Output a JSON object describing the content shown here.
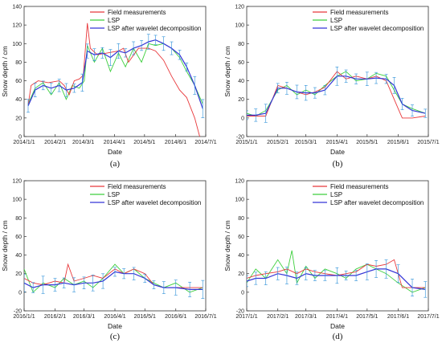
{
  "colors": {
    "field": "#e8383b",
    "lsp": "#3ecf3e",
    "wavelet": "#3535d6",
    "errorbar": "#2a8fd8"
  },
  "chart_data": [
    {
      "type": "line",
      "panel": "(a)",
      "xlabel": "Date",
      "ylabel": "Snow depth / cm",
      "ylim": [
        0,
        140
      ],
      "yticks": [
        0,
        20,
        40,
        60,
        80,
        100,
        120,
        140
      ],
      "xlim": [
        "2014-01-01",
        "2014-07-01"
      ],
      "xtick_labels": [
        "2014/1/1",
        "2014/2/1",
        "2014/3/1",
        "2014/4/1",
        "2014/5/1",
        "2014/6/1",
        "2014/7/1"
      ],
      "legend": "top-right",
      "series": [
        {
          "name": "Field measurements",
          "key": "field",
          "x": [
            "2014-01-05",
            "2014-01-08",
            "2014-01-15",
            "2014-01-25",
            "2014-02-05",
            "2014-02-10",
            "2014-02-15",
            "2014-02-20",
            "2014-02-25",
            "2014-03-01",
            "2014-03-05",
            "2014-03-08",
            "2014-03-15",
            "2014-03-25",
            "2014-04-05",
            "2014-04-10",
            "2014-04-15",
            "2014-04-25",
            "2014-05-05",
            "2014-05-12",
            "2014-05-20",
            "2014-05-28",
            "2014-06-05",
            "2014-06-12",
            "2014-06-20",
            "2014-06-25"
          ],
          "y": [
            34,
            55,
            60,
            58,
            60,
            55,
            45,
            60,
            62,
            66,
            122,
            95,
            88,
            90,
            92,
            95,
            80,
            95,
            95,
            92,
            82,
            65,
            50,
            42,
            20,
            0
          ]
        },
        {
          "name": "LSP",
          "key": "lsp",
          "x": [
            "2014-01-05",
            "2014-01-12",
            "2014-01-20",
            "2014-01-28",
            "2014-02-05",
            "2014-02-12",
            "2014-02-18",
            "2014-02-25",
            "2014-03-02",
            "2014-03-05",
            "2014-03-12",
            "2014-03-20",
            "2014-03-28",
            "2014-04-05",
            "2014-04-12",
            "2014-04-20",
            "2014-04-28",
            "2014-05-05",
            "2014-05-12",
            "2014-05-20",
            "2014-05-28",
            "2014-06-05",
            "2014-06-12",
            "2014-06-20",
            "2014-06-28"
          ],
          "y": [
            35,
            52,
            58,
            45,
            58,
            40,
            55,
            52,
            60,
            98,
            80,
            95,
            70,
            90,
            75,
            95,
            80,
            100,
            98,
            100,
            95,
            85,
            70,
            55,
            35
          ]
        },
        {
          "name": "LSP after wavelet decomposition",
          "key": "wavelet",
          "x": [
            "2014-01-05",
            "2014-01-12",
            "2014-01-20",
            "2014-01-28",
            "2014-02-05",
            "2014-02-12",
            "2014-02-20",
            "2014-02-28",
            "2014-03-05",
            "2014-03-12",
            "2014-03-20",
            "2014-03-28",
            "2014-04-05",
            "2014-04-12",
            "2014-04-20",
            "2014-04-28",
            "2014-05-05",
            "2014-05-12",
            "2014-05-20",
            "2014-05-28",
            "2014-06-05",
            "2014-06-12",
            "2014-06-20",
            "2014-06-28"
          ],
          "y": [
            33,
            50,
            55,
            52,
            55,
            50,
            52,
            58,
            92,
            88,
            90,
            85,
            92,
            90,
            95,
            98,
            102,
            104,
            100,
            95,
            88,
            75,
            55,
            30
          ]
        }
      ]
    },
    {
      "type": "line",
      "panel": "(b)",
      "xlabel": "Date",
      "ylabel": "Snow depth / cm",
      "ylim": [
        -20,
        120
      ],
      "yticks": [
        -20,
        0,
        20,
        40,
        60,
        80,
        100,
        120
      ],
      "xlim": [
        "2015-01-01",
        "2015-07-01"
      ],
      "xtick_labels": [
        "2015/1/1",
        "2015/2/1",
        "2015/3/1",
        "2015/4/1",
        "2015/5/1",
        "2015/6/1",
        "2015/7/1"
      ],
      "legend": "top-right",
      "series": [
        {
          "name": "Field measurements",
          "key": "field",
          "x": [
            "2015-01-01",
            "2015-01-10",
            "2015-01-20",
            "2015-02-01",
            "2015-02-10",
            "2015-02-20",
            "2015-03-01",
            "2015-03-10",
            "2015-03-20",
            "2015-04-01",
            "2015-04-10",
            "2015-04-20",
            "2015-05-01",
            "2015-05-10",
            "2015-05-20",
            "2015-05-28",
            "2015-06-05",
            "2015-06-15",
            "2015-06-28"
          ],
          "y": [
            2,
            2,
            2,
            35,
            32,
            28,
            25,
            28,
            33,
            50,
            42,
            45,
            42,
            45,
            40,
            20,
            0,
            0,
            2
          ]
        },
        {
          "name": "LSP",
          "key": "lsp",
          "x": [
            "2015-01-01",
            "2015-01-10",
            "2015-01-20",
            "2015-02-01",
            "2015-02-10",
            "2015-02-20",
            "2015-03-01",
            "2015-03-10",
            "2015-03-20",
            "2015-04-01",
            "2015-04-10",
            "2015-04-20",
            "2015-05-01",
            "2015-05-10",
            "2015-05-20",
            "2015-05-28",
            "2015-06-05",
            "2015-06-15",
            "2015-06-28"
          ],
          "y": [
            5,
            2,
            8,
            30,
            35,
            25,
            30,
            25,
            35,
            45,
            50,
            40,
            42,
            48,
            45,
            30,
            15,
            10,
            5
          ]
        },
        {
          "name": "LSP after wavelet decomposition",
          "key": "wavelet",
          "x": [
            "2015-01-01",
            "2015-01-10",
            "2015-01-20",
            "2015-02-01",
            "2015-02-10",
            "2015-02-20",
            "2015-03-01",
            "2015-03-10",
            "2015-03-20",
            "2015-04-01",
            "2015-04-10",
            "2015-04-20",
            "2015-05-01",
            "2015-05-10",
            "2015-05-20",
            "2015-05-28",
            "2015-06-05",
            "2015-06-15",
            "2015-06-28"
          ],
          "y": [
            3,
            3,
            5,
            32,
            32,
            28,
            27,
            27,
            30,
            45,
            45,
            42,
            42,
            43,
            42,
            35,
            15,
            8,
            5
          ]
        }
      ]
    },
    {
      "type": "line",
      "panel": "(c)",
      "xlabel": "Date",
      "ylabel": "Snow depth / cm",
      "ylim": [
        -20,
        120
      ],
      "yticks": [
        -20,
        0,
        20,
        40,
        60,
        80,
        100,
        120
      ],
      "xlim": [
        "2016-01-01",
        "2016-07-01"
      ],
      "xtick_labels": [
        "2016/1/1",
        "2016/2/1",
        "2016/3/1",
        "2016/4/1",
        "2016/5/1",
        "2016/6/1",
        "2016/7/1"
      ],
      "legend": "top-right",
      "series": [
        {
          "name": "Field measurements",
          "key": "field",
          "x": [
            "2016-01-01",
            "2016-01-10",
            "2016-01-20",
            "2016-02-01",
            "2016-02-10",
            "2016-02-14",
            "2016-02-20",
            "2016-03-01",
            "2016-03-10",
            "2016-03-20",
            "2016-04-01",
            "2016-04-10",
            "2016-04-20",
            "2016-05-01",
            "2016-05-10",
            "2016-05-20",
            "2016-06-01",
            "2016-06-15",
            "2016-06-28"
          ],
          "y": [
            15,
            10,
            8,
            12,
            10,
            30,
            12,
            15,
            18,
            15,
            25,
            20,
            25,
            20,
            8,
            5,
            5,
            5,
            5
          ]
        },
        {
          "name": "LSP",
          "key": "lsp",
          "x": [
            "2016-01-01",
            "2016-01-10",
            "2016-01-20",
            "2016-02-01",
            "2016-02-10",
            "2016-02-20",
            "2016-03-01",
            "2016-03-10",
            "2016-03-20",
            "2016-04-01",
            "2016-04-10",
            "2016-04-20",
            "2016-05-01",
            "2016-05-10",
            "2016-05-20",
            "2016-06-01",
            "2016-06-15",
            "2016-06-28"
          ],
          "y": [
            25,
            0,
            10,
            5,
            15,
            8,
            12,
            5,
            15,
            30,
            20,
            25,
            15,
            10,
            5,
            10,
            0,
            5
          ]
        },
        {
          "name": "LSP after wavelet decomposition",
          "key": "wavelet",
          "x": [
            "2016-01-01",
            "2016-01-10",
            "2016-01-20",
            "2016-02-01",
            "2016-02-10",
            "2016-02-20",
            "2016-03-01",
            "2016-03-10",
            "2016-03-20",
            "2016-04-01",
            "2016-04-10",
            "2016-04-20",
            "2016-05-01",
            "2016-05-10",
            "2016-05-20",
            "2016-06-01",
            "2016-06-15",
            "2016-06-28"
          ],
          "y": [
            10,
            5,
            8,
            8,
            10,
            8,
            10,
            10,
            12,
            22,
            20,
            20,
            15,
            8,
            5,
            5,
            3,
            3
          ]
        }
      ]
    },
    {
      "type": "line",
      "panel": "(d)",
      "xlabel": "Date",
      "ylabel": "Snow depth / cm",
      "ylim": [
        -20,
        120
      ],
      "yticks": [
        -20,
        0,
        20,
        40,
        60,
        80,
        100,
        120
      ],
      "xlim": [
        "2017-01-01",
        "2017-07-01"
      ],
      "xtick_labels": [
        "2017/1/1",
        "2017/2/1",
        "2017/3/1",
        "2017/4/1",
        "2017/5/1",
        "2017/6/1",
        "2017/7/1"
      ],
      "legend": "top-right",
      "series": [
        {
          "name": "Field measurements",
          "key": "field",
          "x": [
            "2017-01-01",
            "2017-01-10",
            "2017-01-20",
            "2017-02-01",
            "2017-02-10",
            "2017-02-20",
            "2017-03-01",
            "2017-03-10",
            "2017-03-20",
            "2017-04-01",
            "2017-04-10",
            "2017-04-20",
            "2017-05-01",
            "2017-05-10",
            "2017-05-20",
            "2017-05-28",
            "2017-06-05",
            "2017-06-15",
            "2017-06-28"
          ],
          "y": [
            15,
            18,
            20,
            22,
            25,
            20,
            25,
            22,
            20,
            18,
            20,
            22,
            30,
            28,
            30,
            35,
            5,
            5,
            5
          ]
        },
        {
          "name": "LSP",
          "key": "lsp",
          "x": [
            "2017-01-01",
            "2017-01-10",
            "2017-01-20",
            "2017-02-01",
            "2017-02-10",
            "2017-02-15",
            "2017-02-20",
            "2017-03-01",
            "2017-03-10",
            "2017-03-20",
            "2017-04-01",
            "2017-04-10",
            "2017-04-20",
            "2017-05-01",
            "2017-05-10",
            "2017-05-20",
            "2017-06-01",
            "2017-06-15",
            "2017-06-28"
          ],
          "y": [
            10,
            25,
            15,
            35,
            20,
            45,
            10,
            28,
            15,
            25,
            20,
            15,
            25,
            30,
            25,
            20,
            10,
            0,
            5
          ]
        },
        {
          "name": "LSP after wavelet decomposition",
          "key": "wavelet",
          "x": [
            "2017-01-01",
            "2017-01-10",
            "2017-01-20",
            "2017-02-01",
            "2017-02-10",
            "2017-02-20",
            "2017-03-01",
            "2017-03-10",
            "2017-03-20",
            "2017-04-01",
            "2017-04-10",
            "2017-04-20",
            "2017-05-01",
            "2017-05-10",
            "2017-05-20",
            "2017-06-01",
            "2017-06-15",
            "2017-06-28"
          ],
          "y": [
            12,
            15,
            15,
            20,
            18,
            15,
            20,
            18,
            18,
            18,
            18,
            18,
            22,
            25,
            25,
            20,
            5,
            3
          ]
        }
      ]
    }
  ]
}
